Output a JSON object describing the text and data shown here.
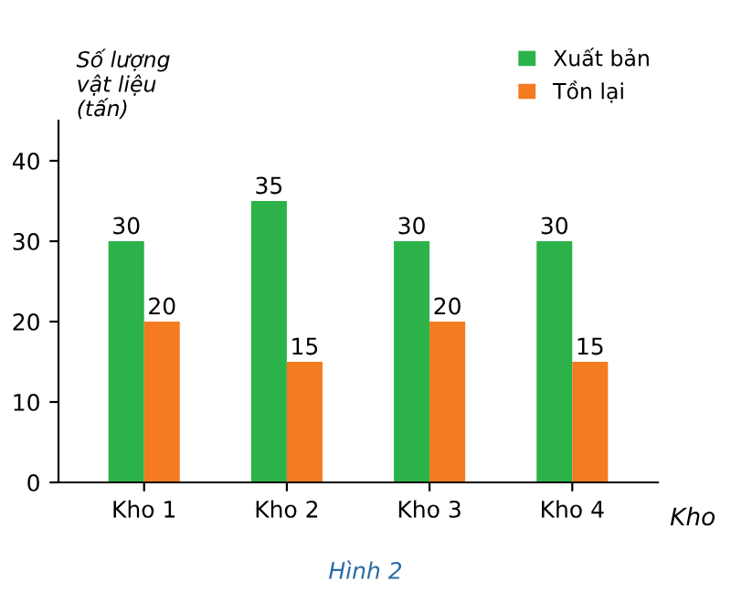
{
  "chart_data": {
    "type": "bar",
    "title": "Hình 2",
    "xlabel": "Kho",
    "ylabel": "Số lượng\nvật liệu\n(tấn)",
    "categories": [
      "Kho 1",
      "Kho 2",
      "Kho 3",
      "Kho 4"
    ],
    "series": [
      {
        "name": "Xuất bản",
        "color": "#2bb34a",
        "values": [
          30,
          35,
          30,
          30
        ]
      },
      {
        "name": "Tồn lại",
        "color": "#f47b20",
        "values": [
          20,
          15,
          20,
          15
        ]
      }
    ],
    "ylim": [
      0,
      45
    ],
    "yticks": [
      0,
      10,
      20,
      30,
      40
    ],
    "data_labels": true,
    "legend": "top right",
    "grid": false
  }
}
